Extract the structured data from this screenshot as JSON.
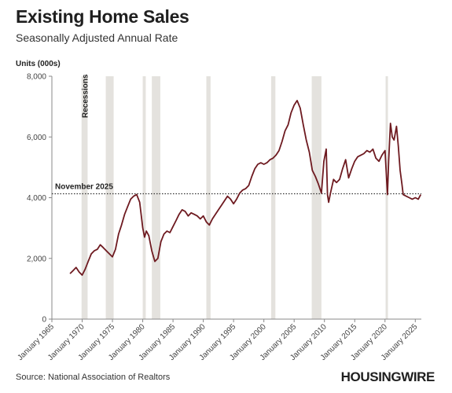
{
  "header": {
    "title": "Existing Home Sales",
    "subtitle": "Seasonally Adjusted Annual Rate"
  },
  "footer": {
    "source": "Source: National Association of Realtors",
    "logo": "HOUSINGWIRE"
  },
  "chart_data": {
    "type": "line",
    "title": "Existing Home Sales",
    "subtitle": "Seasonally Adjusted Annual Rate",
    "ylabel": "Units (000s)",
    "xlim": [
      1965,
      2026
    ],
    "ylim": [
      0,
      8000
    ],
    "yticks": [
      0,
      2000,
      4000,
      6000,
      8000
    ],
    "ytick_labels": [
      "0",
      "2,000",
      "4,000",
      "6,000",
      "8,000"
    ],
    "xticks": [
      1965,
      1970,
      1975,
      1980,
      1985,
      1990,
      1995,
      2000,
      2005,
      2010,
      2015,
      2020,
      2025
    ],
    "xtick_labels": [
      "January 1965",
      "January 1970",
      "January 1975",
      "January 1980",
      "January 1985",
      "January 1990",
      "January 1995",
      "January 2000",
      "January 2005",
      "January 2010",
      "January 2015",
      "January 2020",
      "January 2025"
    ],
    "grid": false,
    "line_color": "#6e1a20",
    "recession_color": "#e4e2de",
    "recession_label": "Recessions",
    "recessions": [
      [
        1969.9,
        1970.9
      ],
      [
        1973.9,
        1975.2
      ],
      [
        1980.0,
        1980.5
      ],
      [
        1981.5,
        1982.9
      ],
      [
        1990.5,
        1991.2
      ],
      [
        2001.2,
        2001.9
      ],
      [
        2007.9,
        2009.5
      ],
      [
        2020.1,
        2020.4
      ]
    ],
    "reference_line": {
      "label": "November 2025",
      "value": 4130
    },
    "series": [
      {
        "x": [
          1968.0,
          1968.5,
          1969.0,
          1969.5,
          1970.0,
          1970.5,
          1971.0,
          1971.5,
          1972.0,
          1972.5,
          1973.0,
          1973.5,
          1974.0,
          1974.5,
          1975.0,
          1975.5,
          1976.0,
          1976.5,
          1977.0,
          1977.5,
          1978.0,
          1978.5,
          1979.0,
          1979.5,
          1980.0,
          1980.3,
          1980.6,
          1981.0,
          1981.5,
          1982.0,
          1982.5,
          1983.0,
          1983.5,
          1984.0,
          1984.5,
          1985.0,
          1985.5,
          1986.0,
          1986.5,
          1987.0,
          1987.5,
          1988.0,
          1988.5,
          1989.0,
          1989.5,
          1990.0,
          1990.5,
          1991.0,
          1991.5,
          1992.0,
          1992.5,
          1993.0,
          1993.5,
          1994.0,
          1994.5,
          1995.0,
          1995.5,
          1996.0,
          1996.5,
          1997.0,
          1997.5,
          1998.0,
          1998.5,
          1999.0,
          1999.5,
          2000.0,
          2000.5,
          2001.0,
          2001.5,
          2002.0,
          2002.5,
          2003.0,
          2003.5,
          2004.0,
          2004.5,
          2005.0,
          2005.5,
          2006.0,
          2006.5,
          2007.0,
          2007.5,
          2008.0,
          2008.5,
          2009.0,
          2009.5,
          2009.9,
          2010.3,
          2010.5,
          2010.7,
          2011.0,
          2011.5,
          2012.0,
          2012.5,
          2013.0,
          2013.5,
          2014.0,
          2014.5,
          2015.0,
          2015.5,
          2016.0,
          2016.5,
          2017.0,
          2017.5,
          2018.0,
          2018.5,
          2019.0,
          2019.5,
          2020.0,
          2020.4,
          2020.6,
          2020.9,
          2021.2,
          2021.5,
          2021.9,
          2022.2,
          2022.5,
          2022.8,
          2023.0,
          2023.5,
          2024.0,
          2024.5,
          2025.0,
          2025.5,
          2025.9
        ],
        "y": [
          1500,
          1600,
          1700,
          1550,
          1450,
          1650,
          1900,
          2150,
          2250,
          2300,
          2450,
          2350,
          2250,
          2150,
          2050,
          2300,
          2800,
          3100,
          3450,
          3700,
          3950,
          4050,
          4100,
          3850,
          3000,
          2700,
          2900,
          2750,
          2250,
          1900,
          2000,
          2550,
          2800,
          2900,
          2850,
          3050,
          3250,
          3450,
          3600,
          3550,
          3400,
          3500,
          3450,
          3400,
          3300,
          3400,
          3200,
          3100,
          3300,
          3450,
          3600,
          3750,
          3900,
          4050,
          3950,
          3800,
          3950,
          4150,
          4250,
          4300,
          4400,
          4700,
          4950,
          5100,
          5150,
          5100,
          5150,
          5250,
          5300,
          5400,
          5550,
          5850,
          6200,
          6400,
          6800,
          7050,
          7200,
          6950,
          6400,
          5900,
          5500,
          4900,
          4700,
          4450,
          4150,
          5200,
          5600,
          4100,
          3850,
          4150,
          4600,
          4500,
          4600,
          4950,
          5250,
          4650,
          4950,
          5200,
          5350,
          5400,
          5450,
          5550,
          5500,
          5600,
          5300,
          5200,
          5400,
          5550,
          4100,
          5200,
          6450,
          6000,
          5900,
          6350,
          5700,
          4900,
          4450,
          4100,
          4050,
          4000,
          3950,
          4000,
          3950,
          4100
        ]
      }
    ]
  }
}
